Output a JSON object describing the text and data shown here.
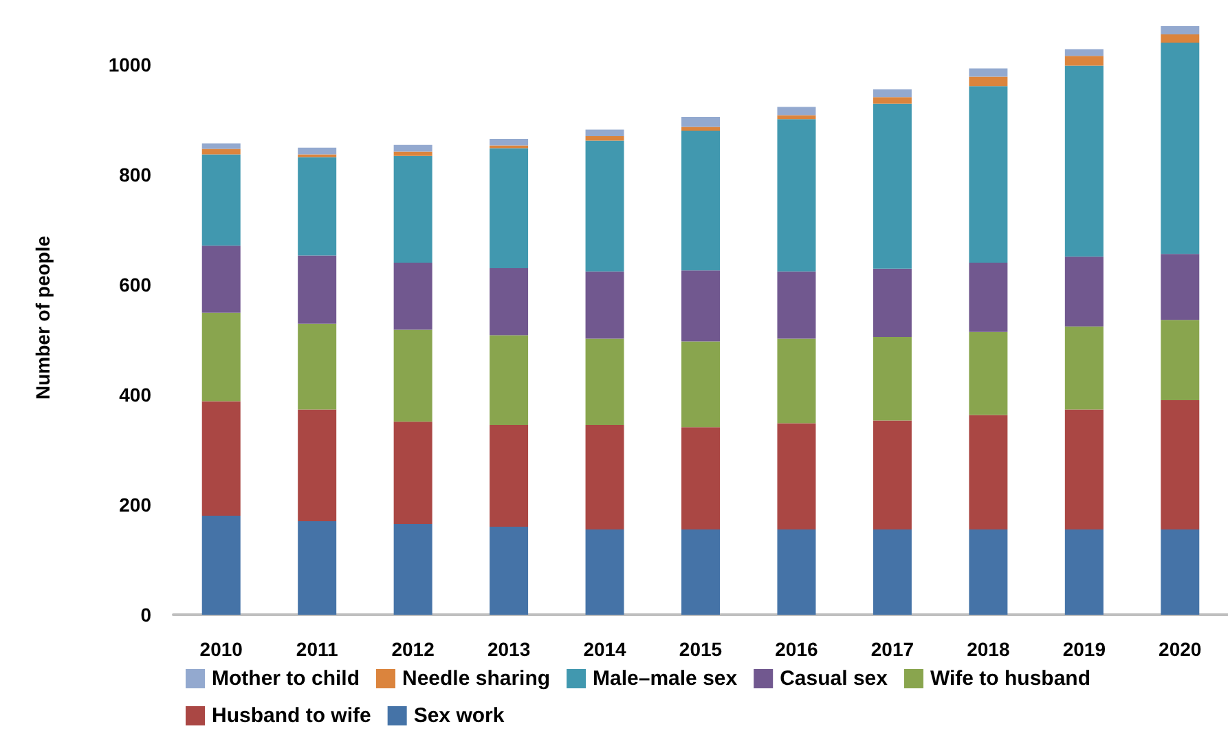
{
  "chart_data": {
    "type": "bar",
    "stacked": true,
    "ylabel": "Number of people",
    "categories": [
      "2010",
      "2011",
      "2012",
      "2013",
      "2014",
      "2015",
      "2016",
      "2017",
      "2018",
      "2019",
      "2020"
    ],
    "series": [
      {
        "name": "Sex work",
        "color": "#4573a7",
        "values": [
          180,
          170,
          165,
          160,
          155,
          155,
          155,
          155,
          155,
          155,
          155
        ]
      },
      {
        "name": "Husband to wife",
        "color": "#aa4744",
        "values": [
          208,
          203,
          186,
          185,
          190,
          186,
          193,
          198,
          208,
          218,
          235
        ]
      },
      {
        "name": "Wife to husband",
        "color": "#89a54e",
        "values": [
          161,
          156,
          167,
          163,
          157,
          156,
          154,
          152,
          151,
          151,
          146
        ]
      },
      {
        "name": "Casual sex",
        "color": "#71588f",
        "values": [
          122,
          124,
          122,
          122,
          122,
          129,
          122,
          124,
          126,
          127,
          120
        ]
      },
      {
        "name": "Male–male sex",
        "color": "#4198af",
        "values": [
          166,
          179,
          194,
          218,
          238,
          254,
          277,
          300,
          321,
          347,
          384
        ]
      },
      {
        "name": "Needle sharing",
        "color": "#db843d",
        "values": [
          10,
          5,
          8,
          5,
          8,
          7,
          7,
          12,
          17,
          18,
          15
        ]
      },
      {
        "name": "Mother to child",
        "color": "#93a9cf",
        "values": [
          10,
          12,
          12,
          12,
          12,
          18,
          15,
          14,
          15,
          12,
          15
        ]
      }
    ],
    "ylim": [
      0,
      1080
    ],
    "yticks": [
      0,
      200,
      400,
      600,
      800,
      1000
    ],
    "grid": false,
    "legend": "bottom"
  }
}
